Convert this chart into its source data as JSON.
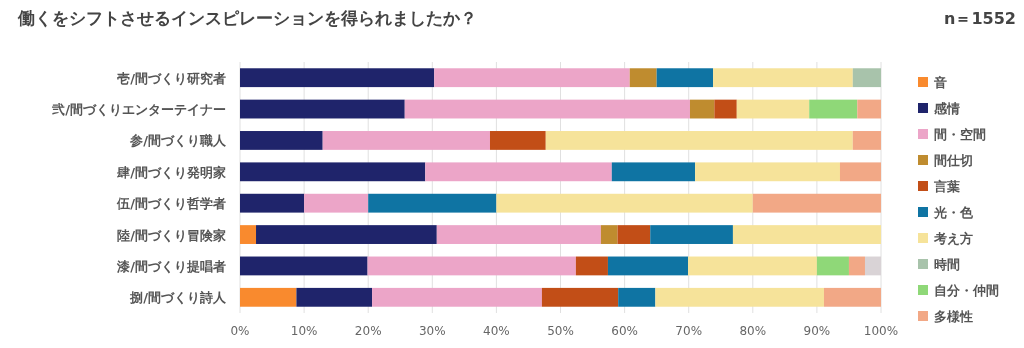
{
  "chart_data": {
    "type": "bar",
    "orientation": "horizontal",
    "stacked": true,
    "title": "働くをシフトさせるインスピレーションを得られましたか？",
    "annotations": [
      "n＝1552"
    ],
    "categories": [
      "壱/間づくり研究者",
      "弐/間づくりエンターテイナー",
      "参/間づくり職人",
      "肆/間づくり発明家",
      "伍/間づくり哲学者",
      "陸/間づくり冒険家",
      "漆/間づくり提唱者",
      "捌/間づくり詩人"
    ],
    "series": [
      {
        "name": "音",
        "color": "#f98a2e",
        "values": [
          null,
          null,
          null,
          null,
          null,
          2.5,
          null,
          8.8
        ]
      },
      {
        "name": "感情",
        "color": "#1f246b",
        "values": [
          30.3,
          25.7,
          12.9,
          28.9,
          10,
          28.2,
          19.9,
          11.8
        ]
      },
      {
        "name": "間・空間",
        "color": "#eca5c8",
        "values": [
          30.5,
          44.5,
          26.1,
          29.1,
          10,
          25.6,
          32.5,
          26.5
        ]
      },
      {
        "name": "間仕切",
        "color": "#bf8c2f",
        "values": [
          4.2,
          3.8,
          null,
          null,
          null,
          2.6,
          null,
          null
        ]
      },
      {
        "name": "言葉",
        "color": "#c24e17",
        "values": [
          null,
          3.5,
          8.7,
          null,
          null,
          5.1,
          5.0,
          11.9
        ]
      },
      {
        "name": "光・色",
        "color": "#0f74a3",
        "values": [
          8.8,
          null,
          null,
          13.0,
          20,
          12.9,
          12.5,
          5.8
        ]
      },
      {
        "name": "考え方",
        "color": "#f6e39a",
        "values": [
          21.8,
          11.3,
          47.9,
          22.6,
          40,
          23.1,
          20.1,
          26.3
        ]
      },
      {
        "name": "時間",
        "color": "#a8c3ab",
        "values": [
          4.4,
          null,
          null,
          null,
          null,
          null,
          null,
          null
        ]
      },
      {
        "name": "自分・仲間",
        "color": "#8fd878",
        "values": [
          null,
          7.5,
          null,
          null,
          null,
          null,
          5.0,
          null
        ]
      },
      {
        "name": "多様性",
        "color": "#f2a886",
        "values": [
          null,
          3.7,
          4.4,
          6.4,
          20,
          null,
          2.5,
          8.9
        ]
      },
      {
        "color": "#d9d3d6",
        "values": [
          null,
          null,
          null,
          null,
          null,
          null,
          2.5,
          null
        ]
      }
    ],
    "xlim": [
      0,
      100
    ],
    "xticks": [
      {
        "value": 0,
        "label": "0%"
      },
      {
        "value": 10,
        "label": "10%"
      },
      {
        "value": 20,
        "label": "20%"
      },
      {
        "value": 30,
        "label": "30%"
      },
      {
        "value": 40,
        "label": "40%"
      },
      {
        "value": 50,
        "label": "50%"
      },
      {
        "value": 60,
        "label": "60%"
      },
      {
        "value": 70,
        "label": "70%"
      },
      {
        "value": 80,
        "label": "80%"
      },
      {
        "value": 90,
        "label": "90%"
      },
      {
        "value": 100,
        "label": "100%"
      }
    ],
    "grid": "x",
    "legend": "right"
  }
}
